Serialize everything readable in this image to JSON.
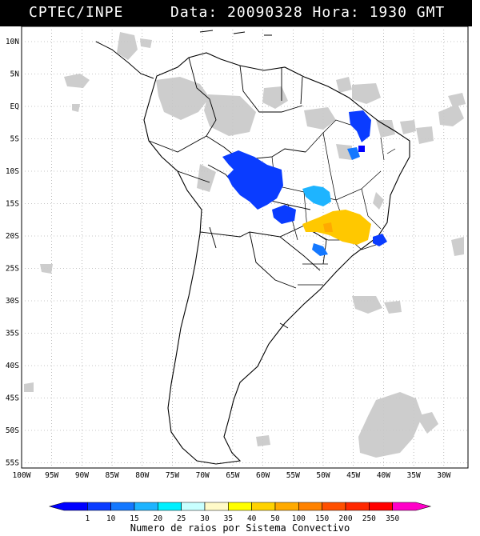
{
  "header": {
    "source": "CPTEC/INPE",
    "date_text": "Data: 20090328 Hora: 1930 GMT",
    "background": "#000000",
    "text_color": "#ffffff"
  },
  "map": {
    "lat_ticks": [
      "10N",
      "5N",
      "EQ",
      "5S",
      "10S",
      "15S",
      "20S",
      "25S",
      "30S",
      "35S",
      "40S",
      "45S",
      "50S",
      "55S"
    ],
    "lon_ticks": [
      "100W",
      "95W",
      "90W",
      "85W",
      "80W",
      "75W",
      "70W",
      "65W",
      "60W",
      "55W",
      "50W",
      "45W",
      "40W",
      "35W",
      "30W"
    ],
    "grid": "dotted",
    "background_color": "#ffffff",
    "cloud_color": "#c8c8c8",
    "coastline_color": "#000000"
  },
  "legend": {
    "title": "Numero de raios por Sistema Convectivo",
    "labels": [
      "1",
      "10",
      "15",
      "20",
      "25",
      "30",
      "35",
      "40",
      "50",
      "100",
      "150",
      "200",
      "250",
      "350"
    ],
    "colors": [
      "#0000ff",
      "#0a3cff",
      "#1478ff",
      "#1eb4ff",
      "#00f0ff",
      "#c8ffff",
      "#fffac8",
      "#ffff00",
      "#ffd200",
      "#ffaa00",
      "#ff8200",
      "#ff5000",
      "#ff2800",
      "#ff0000",
      "#ff00c8"
    ]
  }
}
